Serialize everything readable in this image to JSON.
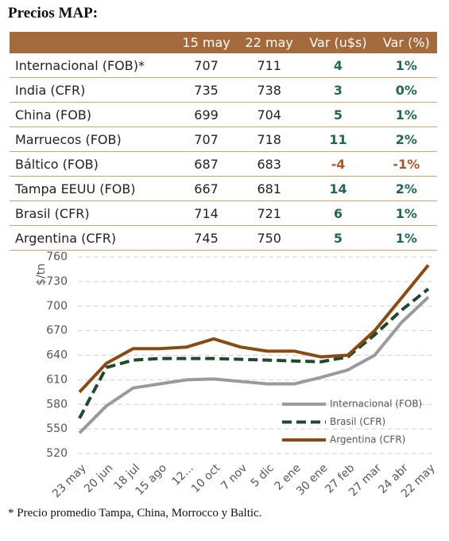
{
  "title": "Precios MAP:",
  "table": {
    "header": [
      "",
      "15 may",
      "22 may",
      "Var (u$s)",
      "Var (%)"
    ],
    "rows": [
      [
        "Internacional (FOB)*",
        "707",
        "711",
        "4",
        "1%"
      ],
      [
        "India (CFR)",
        "735",
        "738",
        "3",
        "0%"
      ],
      [
        "China (FOB)",
        "699",
        "704",
        "5",
        "1%"
      ],
      [
        "Marruecos (FOB)",
        "707",
        "718",
        "11",
        "2%"
      ],
      [
        "Báltico (FOB)",
        "687",
        "683",
        "-4",
        "-1%"
      ],
      [
        "Tampa EEUU (FOB)",
        "667",
        "681",
        "14",
        "2%"
      ],
      [
        "Brasil (CFR)",
        "714",
        "721",
        "6",
        "1%"
      ],
      [
        "Argentina (CFR)",
        "745",
        "750",
        "5",
        "1%"
      ]
    ]
  },
  "chart_data": {
    "type": "line",
    "ylabel": "$/tn",
    "categories": [
      "23 may",
      "20 jun",
      "18 jul",
      "15 ago",
      "12...",
      "10 oct",
      "7 nov",
      "5 dic",
      "2 ene",
      "30 ene",
      "27 feb",
      "27 mar",
      "24 abr",
      "22 may"
    ],
    "series": [
      {
        "name": "Internacional (FOB)",
        "color": "#9a9a9a",
        "dash": false,
        "values": [
          545,
          578,
          600,
          605,
          610,
          611,
          608,
          605,
          605,
          613,
          622,
          640,
          680,
          711
        ]
      },
      {
        "name": "Brasil (CFR)",
        "color": "#1e4a2c",
        "dash": true,
        "values": [
          563,
          625,
          634,
          636,
          636,
          636,
          635,
          634,
          633,
          632,
          638,
          665,
          695,
          721
        ]
      },
      {
        "name": "Argentina (CFR)",
        "color": "#8a4a14",
        "dash": false,
        "values": [
          595,
          630,
          648,
          648,
          650,
          660,
          650,
          645,
          645,
          638,
          640,
          670,
          710,
          750
        ]
      }
    ],
    "ylim": [
      520,
      760
    ],
    "yticks": [
      520,
      550,
      580,
      610,
      640,
      670,
      700,
      730,
      760
    ],
    "grid": true
  },
  "footnote": "* Precio promedio Tampa, China, Morrocco y Baltic."
}
